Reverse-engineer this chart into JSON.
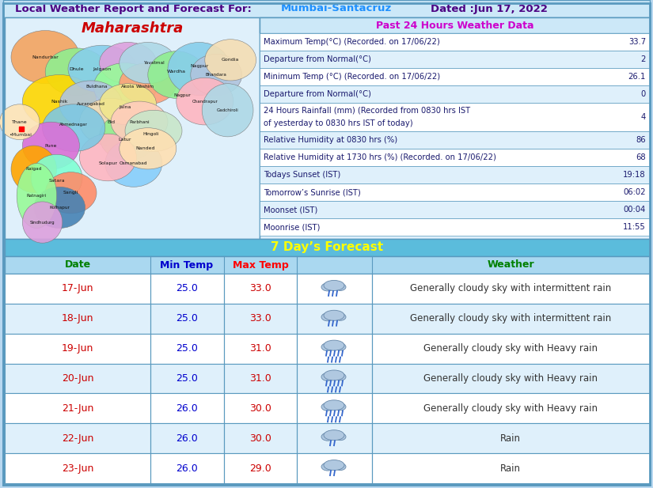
{
  "title_prefix": "Local Weather Report and Forecast For:",
  "title_location": "Mumbai-Santacruz",
  "title_date": "Dated :Jun 17, 2022",
  "title_bg": "#cce8f8",
  "title_prefix_color": "#4b0082",
  "title_location_color": "#1e90ff",
  "title_date_color": "#4b0082",
  "maharashtra_title": "Maharashtra",
  "maharashtra_color": "#cc0000",
  "past24_header": "Past 24 Hours Weather Data",
  "past24_header_color": "#cc00cc",
  "past24_header_bg": "#cce8f8",
  "past24_bg": "#dff0fb",
  "past24_rows": [
    [
      "Maximum Temp(°C) (Recorded. on 17/06/22)",
      "33.7"
    ],
    [
      "Departure from Normal(°C)",
      "2"
    ],
    [
      "Minimum Temp (°C) (Recorded. on 17/06/22)",
      "26.1"
    ],
    [
      "Departure from Normal(°C)",
      "0"
    ],
    [
      "24 Hours Rainfall (mm) (Recorded from 0830 hrs IST\nof yesterday to 0830 hrs IST of today)",
      "4"
    ],
    [
      "Relative Humidity at 0830 hrs (%)",
      "86"
    ],
    [
      "Relative Humidity at 1730 hrs (%) (Recorded. on 17/06/22)",
      "68"
    ],
    [
      "Todays Sunset (IST)",
      "19:18"
    ],
    [
      "Tomorrow’s Sunrise (IST)",
      "06:02"
    ],
    [
      "Moonset (IST)",
      "00:04"
    ],
    [
      "Moonrise (IST)",
      "11:55"
    ]
  ],
  "past24_text_color": "#1a1a6e",
  "past24_value_color": "#1a1a6e",
  "forecast_header": "7 Day’s Forecast",
  "forecast_header_bg": "#5bbcdc",
  "forecast_header_color": "#ffff00",
  "forecast_col_header_bg": "#aad8f0",
  "forecast_col_headers": [
    "Date",
    "Min Temp",
    "Max Temp",
    "Weather"
  ],
  "forecast_col_colors": [
    "#008000",
    "#0000cd",
    "#ff0000",
    "#008000"
  ],
  "forecast_rows": [
    [
      "17-Jun",
      "25.0",
      "33.0",
      "Generally cloudy sky with intermittent rain",
      "light"
    ],
    [
      "18-Jun",
      "25.0",
      "33.0",
      "Generally cloudy sky with intermittent rain",
      "light"
    ],
    [
      "19-Jun",
      "25.0",
      "31.0",
      "Generally cloudy sky with Heavy rain",
      "heavy"
    ],
    [
      "20-Jun",
      "25.0",
      "31.0",
      "Generally cloudy sky with Heavy rain",
      "heavy"
    ],
    [
      "21-Jun",
      "26.0",
      "30.0",
      "Generally cloudy sky with Heavy rain",
      "heavy"
    ],
    [
      "22-Jun",
      "26.0",
      "30.0",
      "Rain",
      "light_rain"
    ],
    [
      "23-Jun",
      "26.0",
      "29.0",
      "Rain",
      "light_rain"
    ]
  ],
  "forecast_date_color": "#cc0000",
  "forecast_min_color": "#0000cd",
  "forecast_max_color": "#cc0000",
  "forecast_weather_color": "#333333",
  "outer_bg": "#b8d8f0",
  "panel_bg": "#dff0fb",
  "border_color": "#5a9abf",
  "row_bg_even": "#ffffff",
  "row_bg_odd": "#dff0fb"
}
